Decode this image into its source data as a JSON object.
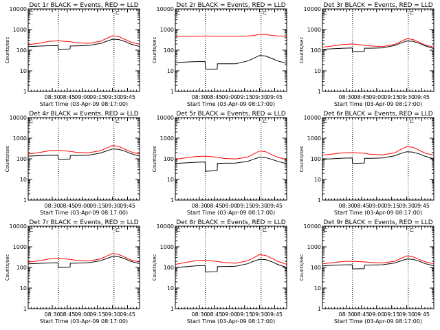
{
  "figure": {
    "common": {
      "type": "line",
      "ylabel": "Counts/sec",
      "xlabel": "Start Time (03-Apr-09 08:17:00)",
      "x_ticks": [
        "08:30",
        "08:45",
        "09:00",
        "09:15",
        "09:30",
        "09:45"
      ],
      "y_ticks": [
        "1",
        "10",
        "100",
        "1000",
        "10000"
      ],
      "y_scale": "log",
      "ylim": [
        1,
        10000
      ],
      "xlim_minutes_after_start": [
        0,
        37
      ],
      "x_tick_minutes_after_start": [
        8,
        13,
        18,
        23,
        28,
        33
      ],
      "dotted_vlines_minutes_after_start": [
        10,
        28.5
      ],
      "marker_glyph": "⊏",
      "colors": {
        "events": "#000000",
        "lld": "#ff0000"
      }
    }
  },
  "chart_data": [
    {
      "title": "Det 1r BLACK = Events, RED = LLD",
      "series": [
        {
          "name": "Events",
          "color": "#000000",
          "x": [
            0,
            4,
            7,
            9.9,
            10,
            13.9,
            14,
            16,
            20,
            24,
            26,
            28,
            30,
            32,
            34,
            37
          ],
          "y": [
            150,
            158,
            165,
            168,
            110,
            115,
            160,
            162,
            170,
            210,
            270,
            340,
            330,
            270,
            200,
            150
          ]
        },
        {
          "name": "LLD",
          "color": "#ff0000",
          "x": [
            0,
            4,
            7,
            10,
            14,
            16,
            20,
            24,
            26,
            28,
            30,
            32,
            34,
            37
          ],
          "y": [
            185,
            220,
            270,
            285,
            255,
            230,
            215,
            270,
            370,
            500,
            460,
            340,
            250,
            195
          ]
        }
      ]
    },
    {
      "title": "Det 2r BLACK = Events, RED = LLD",
      "series": [
        {
          "name": "Events",
          "color": "#000000",
          "x": [
            0,
            4,
            7,
            9.9,
            10,
            13.9,
            14,
            16,
            20,
            24,
            26,
            28,
            30,
            32,
            34,
            37
          ],
          "y": [
            25,
            27,
            28,
            28,
            12,
            12,
            22,
            22,
            22,
            30,
            40,
            56,
            52,
            40,
            30,
            23
          ]
        },
        {
          "name": "LLD",
          "color": "#ff0000",
          "x": [
            0,
            4,
            7,
            10,
            14,
            16,
            20,
            24,
            26,
            28,
            30,
            32,
            34,
            37
          ],
          "y": [
            470,
            475,
            480,
            485,
            480,
            480,
            480,
            490,
            510,
            590,
            570,
            520,
            490,
            470
          ]
        }
      ]
    },
    {
      "title": "Det 3r BLACK = Events, RED = LLD",
      "series": [
        {
          "name": "Events",
          "color": "#000000",
          "x": [
            0,
            4,
            7,
            9.9,
            10,
            13.9,
            14,
            16,
            20,
            24,
            26,
            28,
            30,
            32,
            34,
            37
          ],
          "y": [
            110,
            118,
            125,
            128,
            85,
            88,
            125,
            125,
            130,
            170,
            220,
            280,
            270,
            220,
            165,
            120
          ]
        },
        {
          "name": "LLD",
          "color": "#ff0000",
          "x": [
            0,
            4,
            7,
            10,
            14,
            16,
            20,
            24,
            26,
            28,
            30,
            32,
            34,
            37
          ],
          "y": [
            140,
            165,
            190,
            200,
            175,
            160,
            150,
            190,
            260,
            360,
            330,
            250,
            180,
            140
          ]
        }
      ]
    },
    {
      "title": "Det 4r BLACK = Events, RED = LLD",
      "series": [
        {
          "name": "Events",
          "color": "#000000",
          "x": [
            0,
            4,
            7,
            9.9,
            10,
            13.9,
            14,
            16,
            20,
            24,
            26,
            28,
            30,
            32,
            34,
            37
          ],
          "y": [
            135,
            142,
            148,
            150,
            95,
            98,
            145,
            146,
            150,
            190,
            240,
            300,
            290,
            240,
            180,
            135
          ]
        },
        {
          "name": "LLD",
          "color": "#ff0000",
          "x": [
            0,
            4,
            7,
            10,
            14,
            16,
            20,
            24,
            26,
            28,
            30,
            32,
            34,
            37
          ],
          "y": [
            170,
            205,
            245,
            255,
            230,
            205,
            195,
            245,
            330,
            440,
            400,
            300,
            220,
            170
          ]
        }
      ]
    },
    {
      "title": "Det 5r BLACK = Events, RED = LLD",
      "series": [
        {
          "name": "Events",
          "color": "#000000",
          "x": [
            0,
            4,
            7,
            9.9,
            10,
            13.9,
            14,
            16,
            20,
            24,
            26,
            28,
            30,
            32,
            34,
            37
          ],
          "y": [
            60,
            64,
            68,
            70,
            25,
            27,
            60,
            61,
            62,
            75,
            95,
            120,
            115,
            95,
            75,
            58
          ]
        },
        {
          "name": "LLD",
          "color": "#ff0000",
          "x": [
            0,
            4,
            7,
            10,
            14,
            16,
            20,
            24,
            26,
            28,
            30,
            32,
            34,
            37
          ],
          "y": [
            95,
            115,
            130,
            135,
            120,
            105,
            98,
            120,
            170,
            240,
            220,
            160,
            120,
            90
          ]
        }
      ]
    },
    {
      "title": "Det 6r BLACK = Events, RED = LLD",
      "series": [
        {
          "name": "Events",
          "color": "#000000",
          "x": [
            0,
            4,
            7,
            9.9,
            10,
            13.9,
            14,
            16,
            20,
            24,
            26,
            28,
            30,
            32,
            34,
            37
          ],
          "y": [
            95,
            102,
            108,
            110,
            60,
            62,
            105,
            106,
            110,
            140,
            180,
            220,
            210,
            175,
            135,
            100
          ]
        },
        {
          "name": "LLD",
          "color": "#ff0000",
          "x": [
            0,
            4,
            7,
            10,
            14,
            16,
            20,
            24,
            26,
            28,
            30,
            32,
            34,
            37
          ],
          "y": [
            150,
            175,
            195,
            200,
            185,
            165,
            155,
            195,
            280,
            390,
            360,
            270,
            190,
            150
          ]
        }
      ]
    },
    {
      "title": "Det 7r BLACK = Events, RED = LLD",
      "series": [
        {
          "name": "Events",
          "color": "#000000",
          "x": [
            0,
            4,
            7,
            9.9,
            10,
            13.9,
            14,
            16,
            20,
            24,
            26,
            28,
            30,
            32,
            34,
            37
          ],
          "y": [
            150,
            158,
            165,
            168,
            100,
            103,
            160,
            162,
            168,
            210,
            270,
            340,
            330,
            270,
            200,
            150
          ]
        },
        {
          "name": "LLD",
          "color": "#ff0000",
          "x": [
            0,
            4,
            7,
            10,
            14,
            16,
            20,
            24,
            26,
            28,
            30,
            32,
            34,
            37
          ],
          "y": [
            180,
            215,
            260,
            275,
            245,
            220,
            205,
            260,
            350,
            470,
            430,
            320,
            235,
            180
          ]
        }
      ]
    },
    {
      "title": "Det 8r BLACK = Events, RED = LLD",
      "series": [
        {
          "name": "Events",
          "color": "#000000",
          "x": [
            0,
            4,
            7,
            9.9,
            10,
            13.9,
            14,
            16,
            20,
            24,
            26,
            28,
            30,
            32,
            34,
            37
          ],
          "y": [
            100,
            110,
            120,
            125,
            60,
            62,
            110,
            110,
            115,
            150,
            200,
            250,
            240,
            190,
            140,
            100
          ]
        },
        {
          "name": "LLD",
          "color": "#ff0000",
          "x": [
            0,
            4,
            7,
            10,
            14,
            16,
            20,
            24,
            26,
            28,
            30,
            32,
            34,
            37
          ],
          "y": [
            140,
            180,
            215,
            220,
            195,
            175,
            160,
            210,
            290,
            420,
            380,
            280,
            200,
            140
          ]
        }
      ]
    },
    {
      "title": "Det 9r BLACK = Events, RED = LLD",
      "series": [
        {
          "name": "Events",
          "color": "#000000",
          "x": [
            0,
            4,
            7,
            9.9,
            10,
            13.9,
            14,
            16,
            20,
            24,
            26,
            28,
            30,
            32,
            34,
            37
          ],
          "y": [
            120,
            128,
            133,
            135,
            85,
            87,
            130,
            131,
            135,
            165,
            205,
            255,
            248,
            205,
            155,
            120
          ]
        },
        {
          "name": "LLD",
          "color": "#ff0000",
          "x": [
            0,
            4,
            7,
            10,
            14,
            16,
            20,
            24,
            26,
            28,
            30,
            32,
            34,
            37
          ],
          "y": [
            150,
            175,
            195,
            200,
            185,
            175,
            165,
            200,
            270,
            360,
            330,
            250,
            190,
            150
          ]
        }
      ]
    }
  ]
}
